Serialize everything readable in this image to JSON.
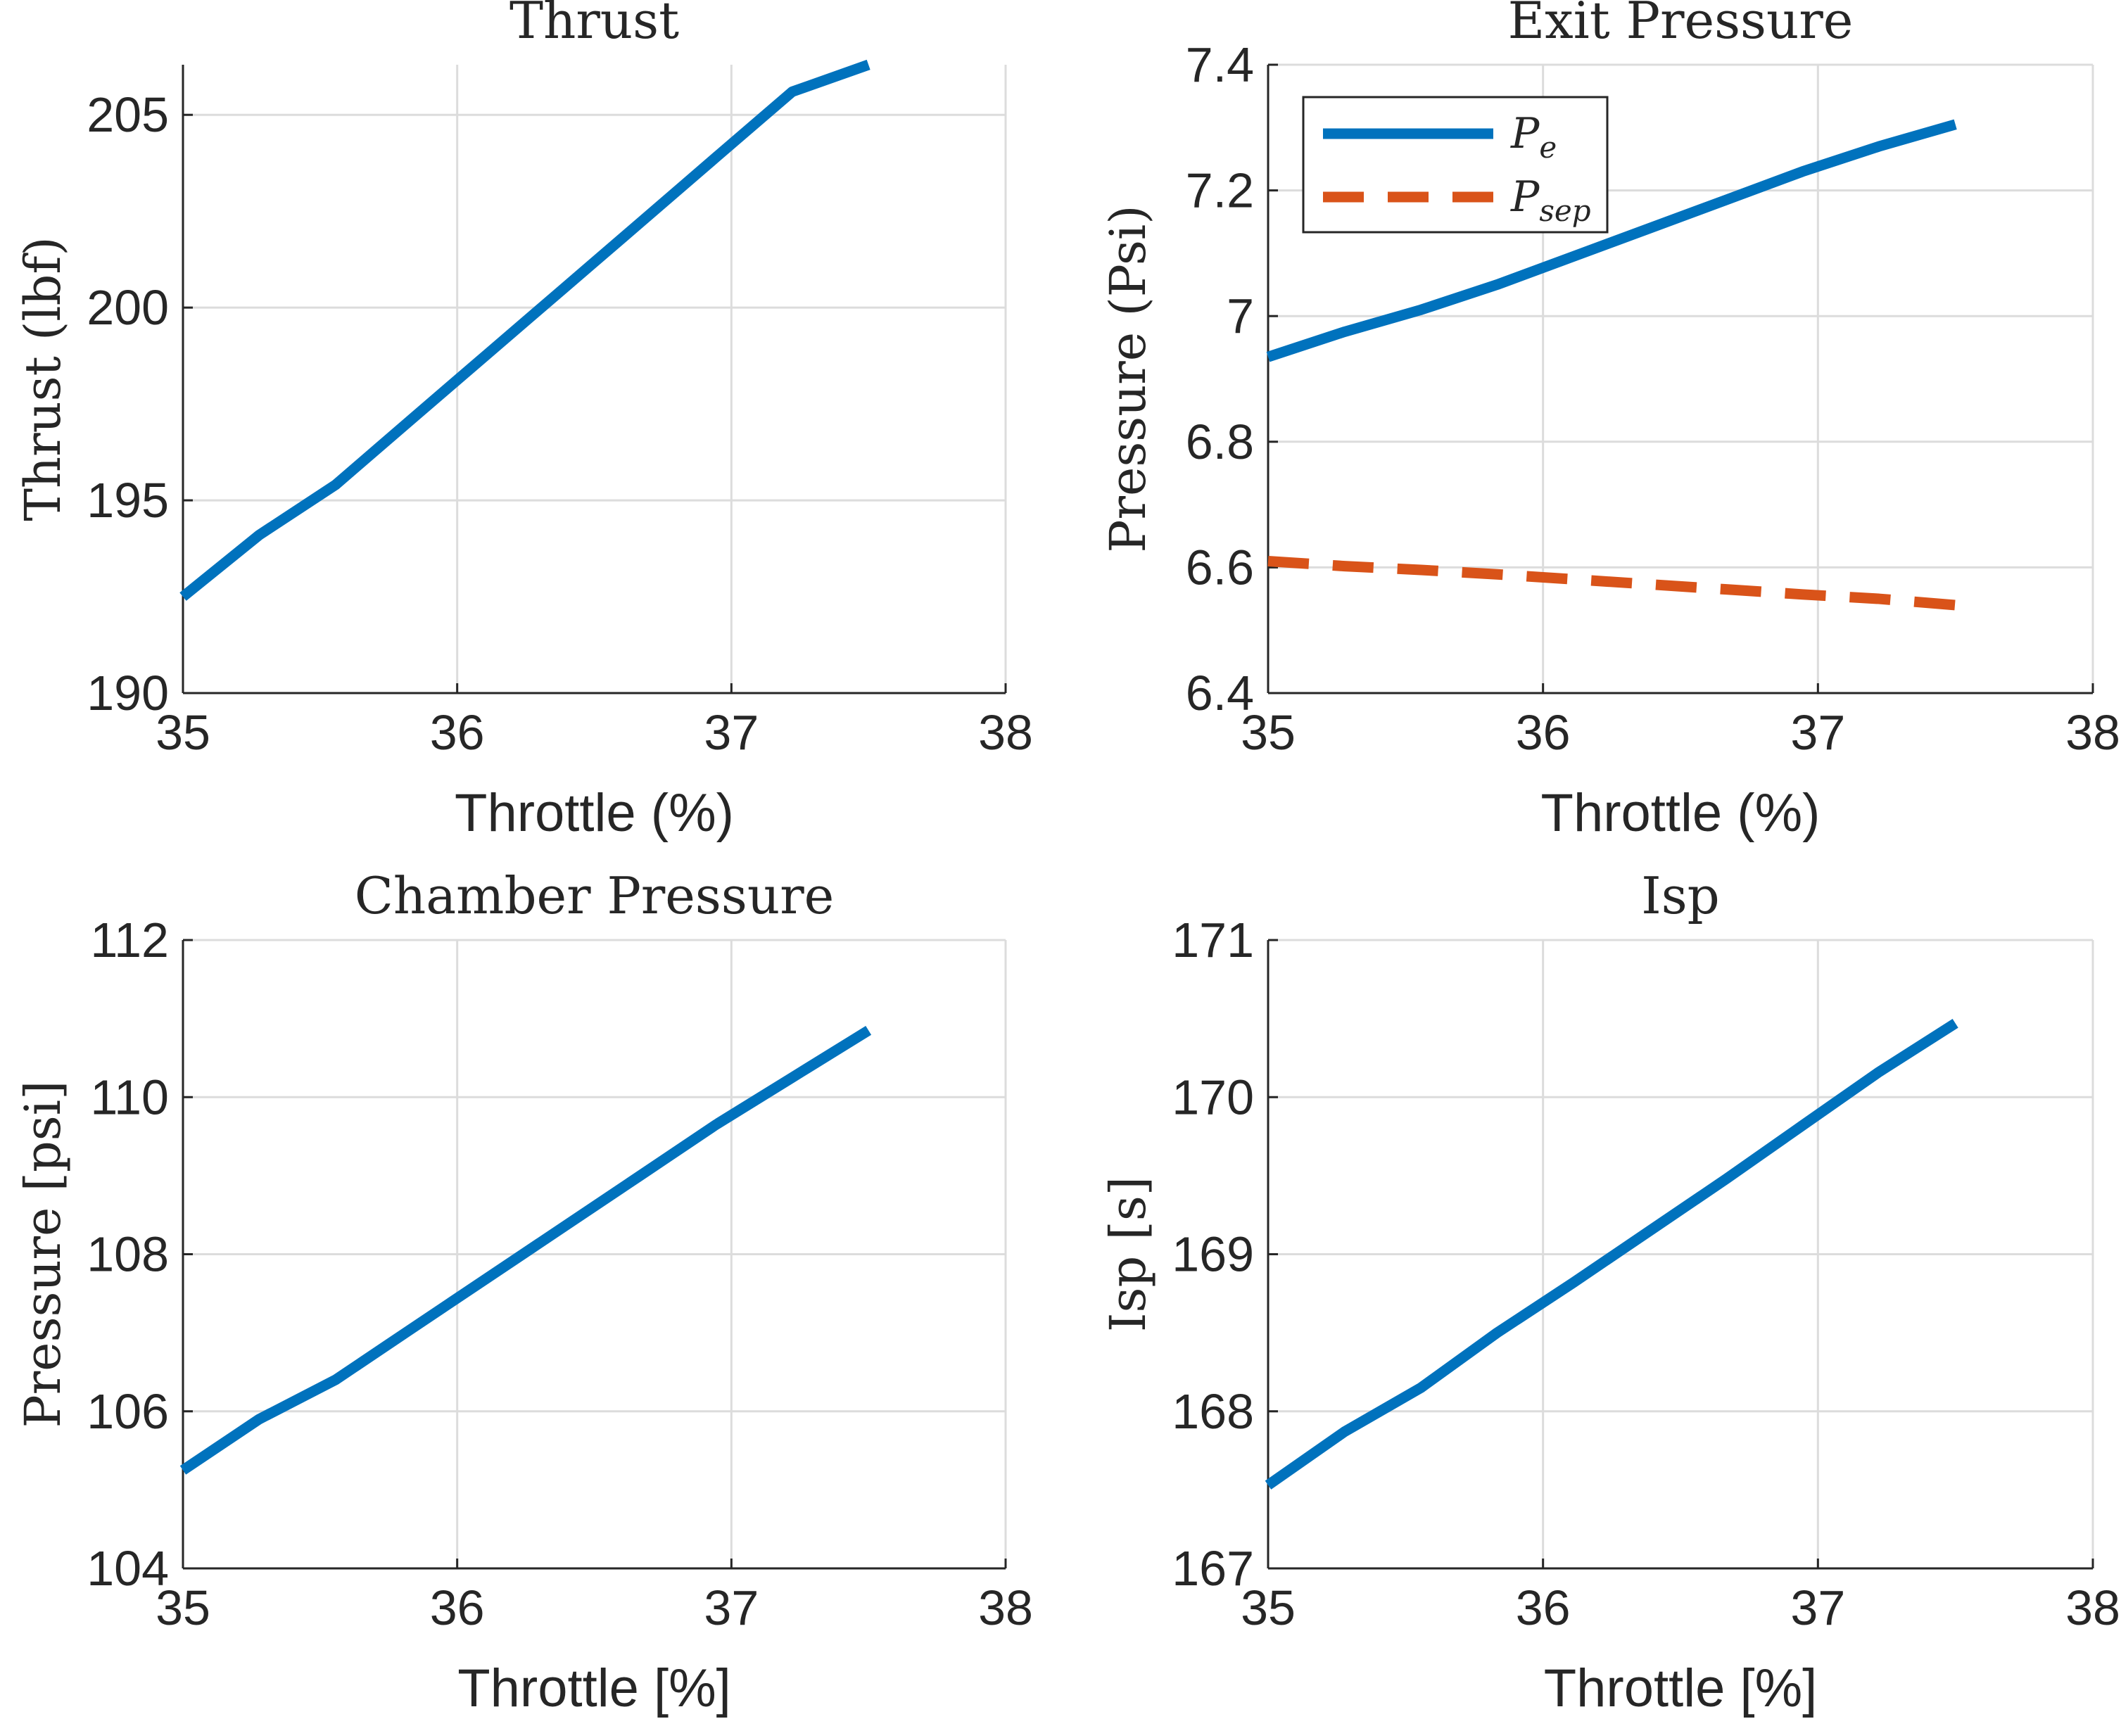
{
  "chart_data": [
    {
      "type": "line",
      "title": "Thrust",
      "xlabel": "Throttle (%)",
      "ylabel": "Thrust (lbf)",
      "xlim": [
        35,
        38
      ],
      "ylim": [
        190,
        206.3
      ],
      "xticks": [
        35,
        36,
        37,
        38
      ],
      "yticks": [
        190,
        195,
        200,
        205
      ],
      "grid": true,
      "series": [
        {
          "color": "#0072BD",
          "style": "solid",
          "x": [
            35,
            35.278,
            35.556,
            35.833,
            36.111,
            36.389,
            36.667,
            36.944,
            37.222,
            37.5
          ],
          "y": [
            192.5,
            194.1,
            195.4,
            197.1,
            198.8,
            200.5,
            202.2,
            203.9,
            205.6,
            206.3
          ]
        }
      ]
    },
    {
      "type": "line",
      "title": "Exit Pressure",
      "xlabel": "Throttle (%)",
      "ylabel": "Pressure (Psi)",
      "xlim": [
        35,
        38
      ],
      "ylim": [
        6.4,
        7.4
      ],
      "xticks": [
        35,
        36,
        37,
        38
      ],
      "yticks": [
        6.4,
        6.6,
        6.8,
        7,
        7.2,
        7.4
      ],
      "grid": true,
      "legend": {
        "placement": "top-left",
        "entries": [
          {
            "base": "P",
            "sub": "e"
          },
          {
            "base": "P",
            "sub": "sep"
          }
        ]
      },
      "series": [
        {
          "color": "#0072BD",
          "style": "solid",
          "x": [
            35,
            35.278,
            35.556,
            35.833,
            36.111,
            36.389,
            36.667,
            36.944,
            37.222,
            37.5
          ],
          "y": [
            6.935,
            6.975,
            7.01,
            7.05,
            7.095,
            7.14,
            7.185,
            7.23,
            7.27,
            7.305
          ]
        },
        {
          "color": "#D95319",
          "style": "dashed",
          "x": [
            35,
            35.278,
            35.556,
            35.833,
            36.111,
            36.389,
            36.667,
            36.944,
            37.222,
            37.5
          ],
          "y": [
            6.61,
            6.602,
            6.596,
            6.589,
            6.581,
            6.573,
            6.565,
            6.557,
            6.55,
            6.54
          ]
        }
      ]
    },
    {
      "type": "line",
      "title": "Chamber Pressure",
      "xlabel": "Throttle [%]",
      "ylabel": "Pressure [psi]",
      "xlim": [
        35,
        38
      ],
      "ylim": [
        104,
        112
      ],
      "xticks": [
        35,
        36,
        37,
        38
      ],
      "yticks": [
        104,
        106,
        108,
        110,
        112
      ],
      "grid": true,
      "series": [
        {
          "color": "#0072BD",
          "style": "solid",
          "x": [
            35,
            35.278,
            35.556,
            35.833,
            36.111,
            36.389,
            36.667,
            36.944,
            37.222,
            37.5
          ],
          "y": [
            105.25,
            105.9,
            106.4,
            107.05,
            107.7,
            108.35,
            109.0,
            109.65,
            110.25,
            110.85
          ]
        }
      ]
    },
    {
      "type": "line",
      "title": "Isp",
      "xlabel": "Throttle [%]",
      "ylabel": "Isp [s]",
      "xlim": [
        35,
        38
      ],
      "ylim": [
        167,
        171
      ],
      "xticks": [
        35,
        36,
        37,
        38
      ],
      "yticks": [
        167,
        168,
        169,
        170,
        171
      ],
      "grid": true,
      "series": [
        {
          "color": "#0072BD",
          "style": "solid",
          "x": [
            35,
            35.278,
            35.556,
            35.833,
            36.111,
            36.389,
            36.667,
            36.944,
            37.222,
            37.5
          ],
          "y": [
            167.53,
            167.87,
            168.15,
            168.5,
            168.82,
            169.15,
            169.48,
            169.82,
            170.16,
            170.47
          ]
        }
      ]
    }
  ]
}
